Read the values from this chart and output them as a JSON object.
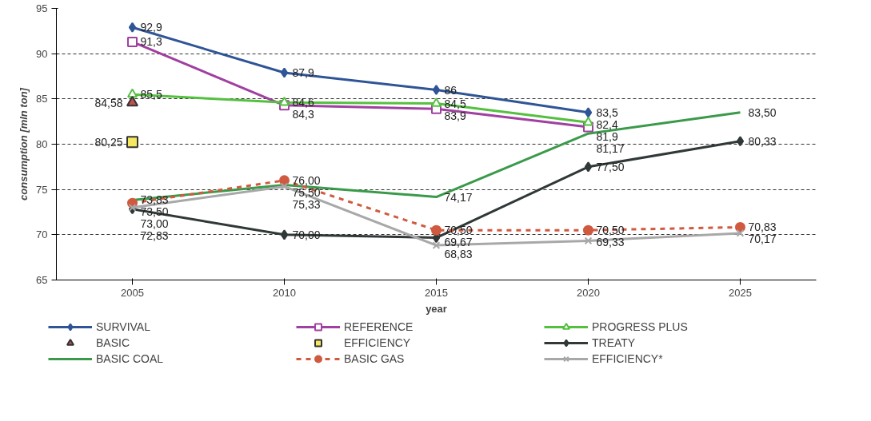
{
  "chart_data": {
    "type": "line",
    "xlabel": "year",
    "ylabel": "consumption [mln ton]",
    "categories": [
      "2005",
      "2010",
      "2015",
      "2020",
      "2025"
    ],
    "ylim": [
      65,
      95
    ],
    "yticks": [
      65,
      70,
      75,
      80,
      85,
      90,
      95
    ],
    "grid": "y",
    "legend": "bottom",
    "series": [
      {
        "name": "SURVIVAL",
        "color": "#2f5597",
        "marker": "diamond",
        "values": [
          92.9,
          87.9,
          86,
          83.5,
          null
        ],
        "value_labels": [
          "92,9",
          "87,9",
          "86",
          "83,5",
          null
        ]
      },
      {
        "name": "REFERENCE",
        "color": "#a040a0",
        "marker": "square",
        "values": [
          91.3,
          84.3,
          83.9,
          81.9,
          null
        ],
        "value_labels": [
          "91,3",
          "84,3",
          "83,9",
          "81,9",
          null
        ]
      },
      {
        "name": "PROGRESS PLUS",
        "color": "#55c040",
        "marker": "triangle",
        "values": [
          85.5,
          84.6,
          84.5,
          82.4,
          null
        ],
        "value_labels": [
          "85,5",
          "84,6",
          "84,5",
          "82,4",
          null
        ]
      },
      {
        "name": "BASIC",
        "type": "scatter",
        "color": "#c0504d",
        "marker": "triangle",
        "values": [
          84.58,
          null,
          null,
          null,
          null
        ],
        "value_labels": [
          "84,58",
          null,
          null,
          null,
          null
        ]
      },
      {
        "name": "EFFICIENCY",
        "type": "scatter",
        "color": "#f5e860",
        "marker": "square",
        "values": [
          80.25,
          null,
          null,
          null,
          null
        ],
        "value_labels": [
          "80,25",
          null,
          null,
          null,
          null
        ]
      },
      {
        "name": "TREATY",
        "color": "#303838",
        "marker": "diamond",
        "values": [
          72.83,
          70.0,
          69.67,
          77.5,
          80.33
        ],
        "value_labels": [
          "72,83",
          "70,00",
          "69,67",
          "77,50",
          "80,33"
        ]
      },
      {
        "name": "BASIC COAL",
        "color": "#3a9a4a",
        "marker": "none",
        "values": [
          73.83,
          75.5,
          74.17,
          81.17,
          83.5
        ],
        "value_labels": [
          "73,83",
          "75,50",
          "74,17",
          "81,17",
          "83,50"
        ]
      },
      {
        "name": "BASIC GAS",
        "color": "#d05a40",
        "marker": "circle",
        "line_style": "dashed",
        "values": [
          73.5,
          76.0,
          70.5,
          70.5,
          70.83
        ],
        "value_labels": [
          "73,50",
          "76,00",
          "70,50",
          "70,50",
          "70,83"
        ]
      },
      {
        "name": "EFFICIENCY*",
        "color": "#a8a8a8",
        "marker": "cross",
        "values": [
          73.0,
          75.33,
          68.83,
          69.33,
          70.17
        ],
        "value_labels": [
          "73,00",
          "75,33",
          "68,83",
          "69,33",
          "70,17"
        ]
      }
    ]
  }
}
